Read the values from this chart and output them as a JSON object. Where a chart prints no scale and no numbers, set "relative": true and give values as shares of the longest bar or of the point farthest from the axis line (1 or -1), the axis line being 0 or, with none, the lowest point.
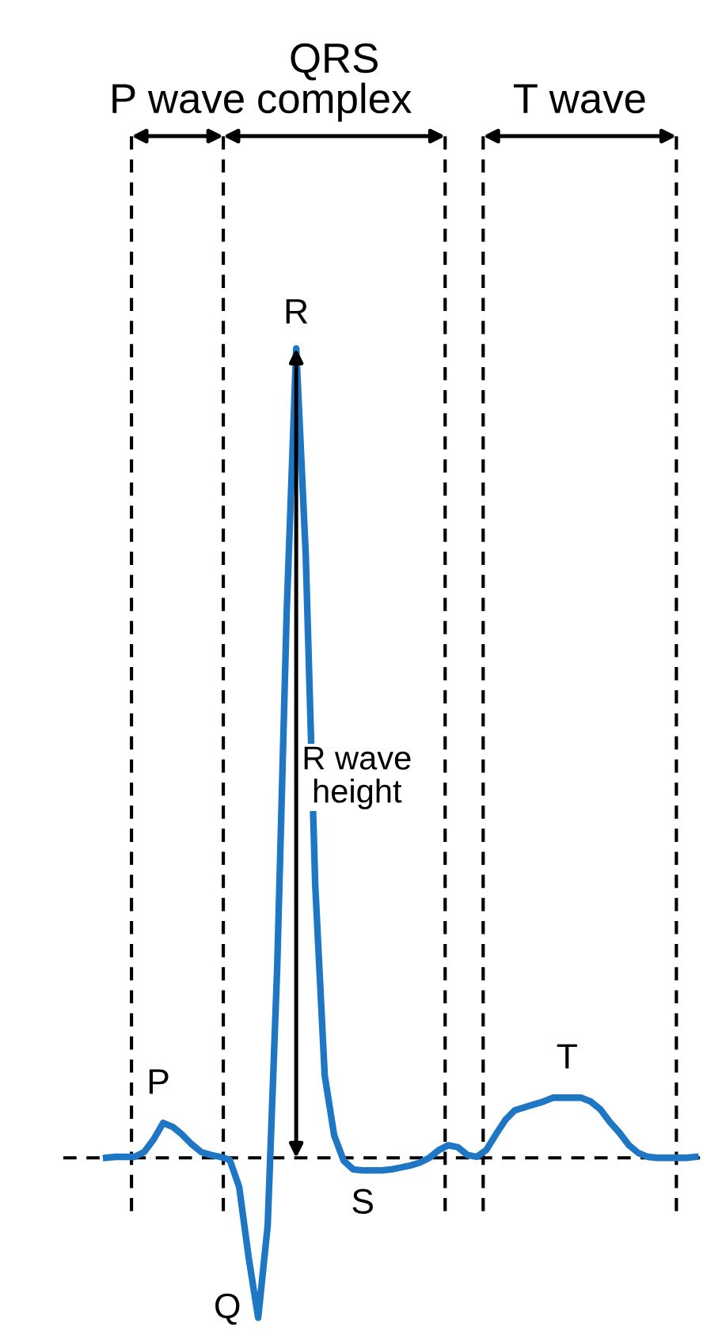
{
  "chart_data": {
    "type": "line",
    "relative": true,
    "color": "#1f77c4",
    "line_style": "solid",
    "marker": "none",
    "categories": [
      null,
      null,
      null,
      null,
      null,
      null,
      null,
      null,
      null,
      null,
      null,
      null,
      null,
      null,
      null,
      null,
      null,
      null,
      null,
      null,
      null,
      null,
      null,
      null,
      null,
      null,
      null,
      null,
      null,
      null,
      null,
      null,
      null,
      null,
      null,
      null,
      null,
      null,
      null,
      null,
      null,
      null,
      null,
      null,
      null,
      null,
      null,
      null,
      null,
      null,
      null,
      null,
      null,
      null,
      null,
      null,
      null,
      null,
      null,
      null,
      null,
      null,
      null
    ],
    "values": [
      0.165,
      0.166,
      0.166,
      0.166,
      0.171,
      0.184,
      0.201,
      0.197,
      0.189,
      0.179,
      0.171,
      0.168,
      0.166,
      0.163,
      0.135,
      0.062,
      0,
      0.095,
      0.361,
      0.728,
      1,
      0.788,
      0.447,
      0.25,
      0.188,
      0.162,
      0.153,
      0.152,
      0.152,
      0.152,
      0.153,
      0.155,
      0.157,
      0.16,
      0.165,
      0.173,
      0.178,
      0.176,
      0.168,
      0.166,
      0.173,
      0.189,
      0.204,
      0.214,
      0.217,
      0.22,
      0.223,
      0.227,
      0.227,
      0.227,
      0.227,
      0.223,
      0.215,
      0.202,
      0.191,
      0.178,
      0.17,
      0.166,
      0.165,
      0.165,
      0.165,
      0.165,
      0.166
    ],
    "ref_lines": [
      {
        "axis": "y",
        "value": 0.165,
        "line_style": "dashed",
        "color": "#000000"
      }
    ],
    "annotations": [
      "P wave",
      "QRS\ncomplex",
      "T wave",
      "P",
      "Q",
      "R",
      "S",
      "T",
      "R wave\nheight"
    ]
  }
}
